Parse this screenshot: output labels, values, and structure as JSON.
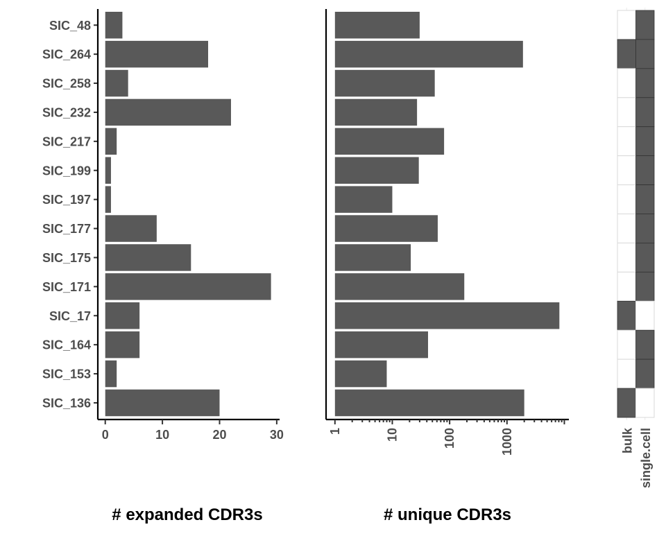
{
  "chart_data": [
    {
      "type": "bar",
      "orientation": "horizontal",
      "categories": [
        "SIC_48",
        "SIC_264",
        "SIC_258",
        "SIC_232",
        "SIC_217",
        "SIC_199",
        "SIC_197",
        "SIC_177",
        "SIC_175",
        "SIC_171",
        "SIC_17",
        "SIC_164",
        "SIC_153",
        "SIC_136"
      ],
      "values": [
        3,
        18,
        4,
        22,
        2,
        1,
        1,
        9,
        15,
        29,
        6,
        6,
        2,
        20
      ],
      "xlabel": "# expanded CDR3s",
      "xticks": [
        0,
        10,
        20,
        30
      ],
      "xtick_labels": [
        "0",
        "10",
        "20",
        "30"
      ],
      "xlim": [
        -1.3,
        30.5
      ],
      "grid": false
    },
    {
      "type": "bar",
      "orientation": "horizontal",
      "categories": [
        "SIC_48",
        "SIC_264",
        "SIC_258",
        "SIC_232",
        "SIC_217",
        "SIC_199",
        "SIC_197",
        "SIC_177",
        "SIC_175",
        "SIC_171",
        "SIC_17",
        "SIC_164",
        "SIC_153",
        "SIC_136"
      ],
      "values": [
        30,
        1900,
        55,
        27,
        80,
        29,
        10,
        62,
        21,
        180,
        8200,
        42,
        8,
        2000
      ],
      "xlabel": "# unique CDR3s",
      "xscale": "log10",
      "xticks": [
        1,
        10,
        100,
        1000
      ],
      "xtick_labels": [
        "1",
        "10",
        "100",
        "1000"
      ],
      "xlim": [
        0.7,
        12000
      ],
      "grid": false
    },
    {
      "type": "heatmap",
      "rows": [
        "SIC_48",
        "SIC_264",
        "SIC_258",
        "SIC_232",
        "SIC_217",
        "SIC_199",
        "SIC_197",
        "SIC_177",
        "SIC_175",
        "SIC_171",
        "SIC_17",
        "SIC_164",
        "SIC_153",
        "SIC_136"
      ],
      "columns": [
        "bulk",
        "single.cell"
      ],
      "values": [
        [
          0,
          1
        ],
        [
          1,
          1
        ],
        [
          0,
          1
        ],
        [
          0,
          1
        ],
        [
          0,
          1
        ],
        [
          0,
          1
        ],
        [
          0,
          1
        ],
        [
          0,
          1
        ],
        [
          0,
          1
        ],
        [
          0,
          1
        ],
        [
          1,
          0
        ],
        [
          0,
          1
        ],
        [
          0,
          1
        ],
        [
          1,
          0
        ]
      ],
      "colors": {
        "present": "#595959",
        "absent": "#ffffff"
      }
    }
  ]
}
